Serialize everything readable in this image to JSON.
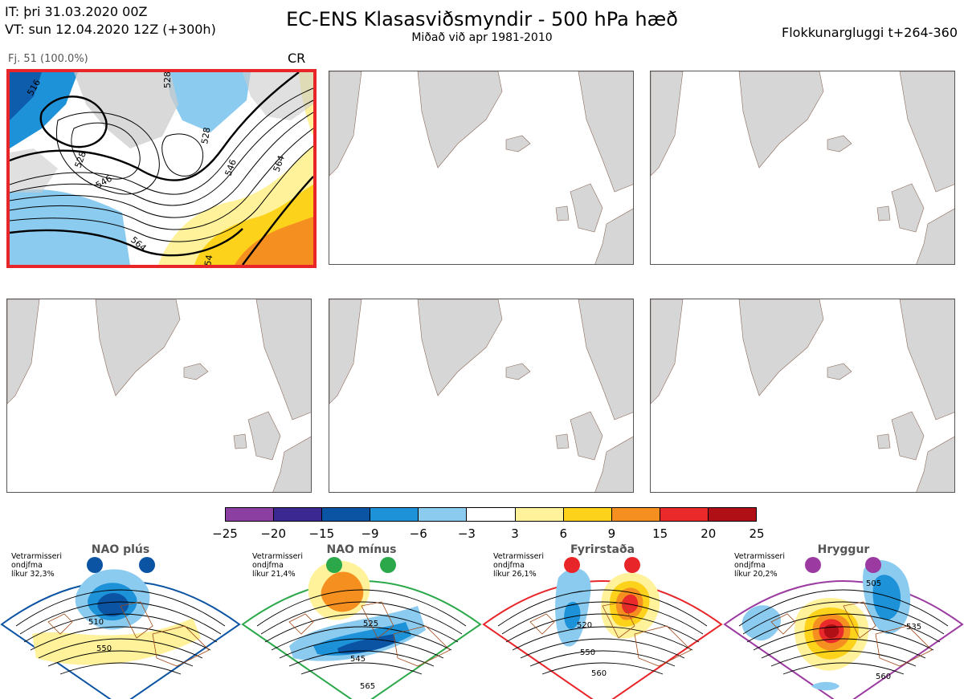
{
  "header": {
    "it_line": "IT: þri 31.03.2020 00Z",
    "vt_line": "VT: sun 12.04.2020 12Z  (+300h)",
    "title": "EC-ENS Klasasviðsmyndir - 500 hPa hæð",
    "subtitle": "Miðað við apr 1981-2010",
    "window": "Flokkunargluggi t+264-360"
  },
  "panel1": {
    "member_label": "Fj. 51 (100.0%)",
    "regime_code": "CR",
    "contour_labels": [
      "516",
      "528",
      "528",
      "546",
      "564",
      "528",
      "546",
      "564",
      "54",
      "516"
    ]
  },
  "colorbar": {
    "colors": [
      "#8b3fa0",
      "#3b2890",
      "#0b54a4",
      "#1e92d8",
      "#8ccbf0",
      "#ffffff",
      "#fff29a",
      "#fdd21a",
      "#f59020",
      "#ea2a2a",
      "#b01015"
    ],
    "ticks": [
      "−25",
      "−20",
      "−15",
      "−9",
      "−6",
      "−3",
      "3",
      "6",
      "9",
      "15",
      "20",
      "25"
    ]
  },
  "regimes": [
    {
      "name": "NAO plús",
      "note_line1": "Vetrarmisseri",
      "note_line2": "ondjfma",
      "note_line3": "líkur 32,3%",
      "color": "#0b54a4",
      "labels": [
        "510",
        "550"
      ]
    },
    {
      "name": "NAO mínus",
      "note_line1": "Vetrarmisseri",
      "note_line2": "ondjfma",
      "note_line3": "líkur 21,4%",
      "color": "#2aa84a",
      "labels": [
        "525",
        "545",
        "565"
      ]
    },
    {
      "name": "Fyrirstaða",
      "note_line1": "Vetrarmisseri",
      "note_line2": "ondjfma",
      "note_line3": "líkur 26,1%",
      "color": "#e8262a",
      "labels": [
        "520",
        "550",
        "560"
      ]
    },
    {
      "name": "Hryggur",
      "note_line1": "Vetrarmisseri",
      "note_line2": "ondjfma",
      "note_line3": "líkur 20,2%",
      "color": "#9b3aa0",
      "labels": [
        "505",
        "535",
        "560"
      ]
    }
  ]
}
